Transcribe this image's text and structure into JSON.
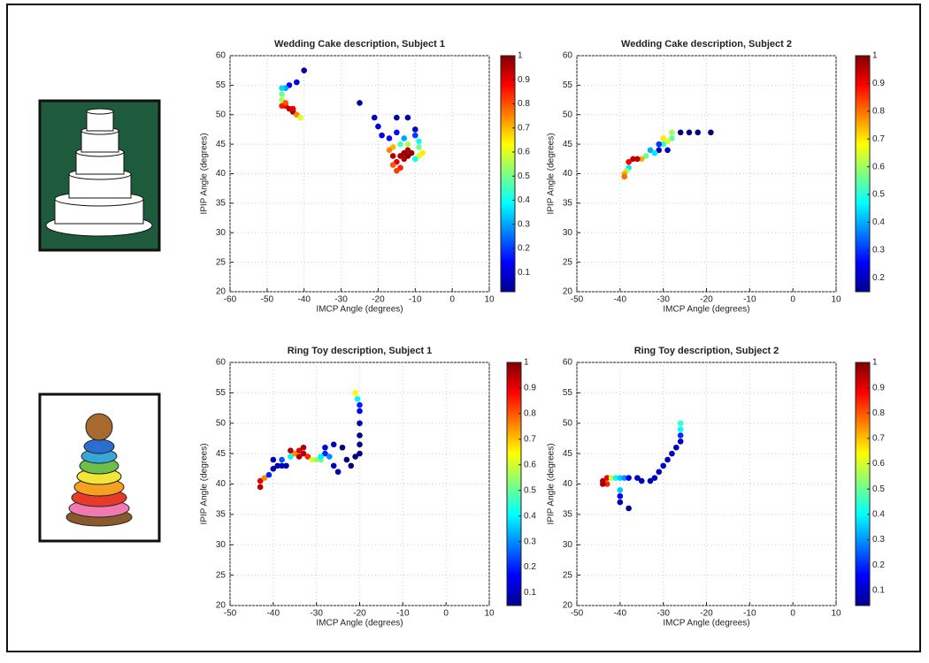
{
  "chart_data": [
    {
      "type": "scatter",
      "title": "Wedding Cake description, Subject 1",
      "x_label": "IMCP Angle (degrees)",
      "y_label": "IPIP Angle (degrees)",
      "xlim": [
        -60,
        10
      ],
      "xticks": [
        -60,
        -50,
        -40,
        -30,
        -20,
        -10,
        0,
        10
      ],
      "ylim": [
        20,
        60
      ],
      "yticks": [
        20,
        25,
        30,
        35,
        40,
        45,
        50,
        55,
        60
      ],
      "grid": true,
      "clim": [
        0.02,
        1
      ],
      "cticks": [
        0.1,
        0.2,
        0.3,
        0.4,
        0.5,
        0.6,
        0.7,
        0.8,
        0.9,
        1
      ],
      "colormap": "jet",
      "x": [
        -40,
        -42,
        -44,
        -45,
        -46,
        -46,
        -46,
        -46,
        -45,
        -44,
        -43,
        -43,
        -42,
        -41,
        -45,
        -25,
        -21,
        -20,
        -19,
        -17,
        -15,
        -12,
        -15,
        -13,
        -14,
        -12,
        -10,
        -10,
        -9,
        -9,
        -9,
        -10,
        -8,
        -12,
        -13,
        -14,
        -15,
        -14,
        -16,
        -15,
        -16,
        -17,
        -11,
        -12,
        -13,
        -16
      ],
      "values": [
        57.5,
        55.5,
        55,
        54.5,
        54.5,
        53.5,
        52.5,
        51.5,
        51.5,
        51,
        50.5,
        51,
        50,
        49.5,
        52,
        52,
        49.5,
        48,
        46.5,
        46,
        49.5,
        49.5,
        47,
        46,
        45,
        45,
        47.5,
        46.5,
        45.5,
        44.5,
        43,
        42.5,
        43.5,
        44,
        43.5,
        43,
        42,
        41,
        41.5,
        40.5,
        44.5,
        44,
        43.5,
        43,
        42.5,
        43
      ],
      "c": [
        0.05,
        0.1,
        0.15,
        0.3,
        0.35,
        0.5,
        0.55,
        0.85,
        0.9,
        0.95,
        0.98,
        0.9,
        0.75,
        0.6,
        0.8,
        0.05,
        0.08,
        0.1,
        0.12,
        0.15,
        0.05,
        0.05,
        0.15,
        0.3,
        0.45,
        0.55,
        0.1,
        0.2,
        0.4,
        0.5,
        0.6,
        0.4,
        0.65,
        0.95,
        0.98,
        0.97,
        0.9,
        0.85,
        0.8,
        0.82,
        0.7,
        0.75,
        0.97,
        0.99,
        0.95,
        0.95
      ]
    },
    {
      "type": "scatter",
      "title": "Wedding Cake description, Subject 2",
      "x_label": "IMCP Angle (degrees)",
      "y_label": "IPIP Angle (degrees)",
      "xlim": [
        -50,
        10
      ],
      "xticks": [
        -50,
        -40,
        -30,
        -20,
        -10,
        0,
        10
      ],
      "ylim": [
        20,
        60
      ],
      "yticks": [
        20,
        25,
        30,
        35,
        40,
        45,
        50,
        55,
        60
      ],
      "grid": true,
      "clim": [
        0.15,
        1
      ],
      "cticks": [
        0.2,
        0.3,
        0.4,
        0.5,
        0.6,
        0.7,
        0.8,
        0.9,
        1
      ],
      "colormap": "jet",
      "x": [
        -19,
        -22,
        -24,
        -26,
        -28,
        -28,
        -29,
        -30,
        -31,
        -31,
        -29,
        -33,
        -34,
        -35,
        -36,
        -37,
        -38,
        -38,
        -38.5,
        -39,
        -39,
        -32,
        -30
      ],
      "values": [
        47,
        47,
        47,
        47,
        47,
        46,
        45.5,
        45,
        45,
        44,
        44,
        44,
        43,
        42.5,
        42.5,
        42.5,
        42,
        41,
        40.5,
        40,
        39.5,
        43.5,
        46
      ],
      "c": [
        0.15,
        0.15,
        0.15,
        0.15,
        0.6,
        0.55,
        0.65,
        0.5,
        0.3,
        0.2,
        0.2,
        0.4,
        0.55,
        0.75,
        0.95,
        0.95,
        0.9,
        0.45,
        0.6,
        0.75,
        0.8,
        0.45,
        0.7
      ]
    },
    {
      "type": "scatter",
      "title": "Ring Toy description, Subject 1",
      "x_label": "IMCP Angle (degrees)",
      "y_label": "IPIP Angle (degrees)",
      "xlim": [
        -50,
        10
      ],
      "xticks": [
        -50,
        -40,
        -30,
        -20,
        -10,
        0,
        10
      ],
      "ylim": [
        20,
        60
      ],
      "yticks": [
        20,
        25,
        30,
        35,
        40,
        45,
        50,
        55,
        60
      ],
      "grid": true,
      "clim": [
        0.05,
        1
      ],
      "cticks": [
        0.1,
        0.2,
        0.3,
        0.4,
        0.5,
        0.6,
        0.7,
        0.8,
        0.9,
        1
      ],
      "colormap": "jet",
      "x": [
        -43,
        -43,
        -42,
        -41,
        -40,
        -39,
        -40,
        -38,
        -37,
        -38,
        -36,
        -35,
        -34,
        -33,
        -34,
        -33,
        -32,
        -31,
        -30,
        -29,
        -28,
        -28,
        -26,
        -26,
        -25,
        -24,
        -23,
        -22,
        -21,
        -20,
        -20,
        -20,
        -20,
        -20,
        -20,
        -20.5,
        -21,
        -36,
        -29,
        -27
      ],
      "values": [
        39.5,
        40.5,
        41,
        41.5,
        42.5,
        43,
        44,
        43,
        43,
        44,
        44.5,
        45,
        45.5,
        46,
        44.5,
        45,
        44.5,
        44,
        44,
        44,
        45,
        46,
        46.5,
        43,
        42,
        46,
        44,
        43,
        44.5,
        45,
        46.5,
        48,
        50,
        52,
        53,
        54,
        55,
        45.5,
        44.5,
        44.5
      ],
      "c": [
        0.95,
        0.9,
        0.75,
        0.2,
        0.1,
        0.1,
        0.1,
        0.1,
        0.1,
        0.25,
        0.4,
        0.75,
        0.9,
        0.95,
        0.95,
        0.95,
        0.85,
        0.6,
        0.55,
        0.5,
        0.2,
        0.15,
        0.1,
        0.1,
        0.1,
        0.05,
        0.05,
        0.05,
        0.05,
        0.05,
        0.05,
        0.05,
        0.1,
        0.15,
        0.2,
        0.4,
        0.65,
        0.95,
        0.4,
        0.3
      ]
    },
    {
      "type": "scatter",
      "title": "Ring Toy description, Subject 2",
      "x_label": "IMCP Angle (degrees)",
      "y_label": "IPIP Angle (degrees)",
      "xlim": [
        -50,
        10
      ],
      "xticks": [
        -50,
        -40,
        -30,
        -20,
        -10,
        0,
        10
      ],
      "ylim": [
        20,
        60
      ],
      "yticks": [
        20,
        25,
        30,
        35,
        40,
        45,
        50,
        55,
        60
      ],
      "grid": true,
      "clim": [
        0.04,
        1
      ],
      "cticks": [
        0.1,
        0.2,
        0.3,
        0.4,
        0.5,
        0.6,
        0.7,
        0.8,
        0.9,
        1
      ],
      "colormap": "jet",
      "x": [
        -44,
        -43,
        -43,
        -42,
        -41,
        -40,
        -39,
        -38,
        -36,
        -35,
        -33,
        -32,
        -31,
        -30,
        -29,
        -28,
        -27,
        -26,
        -26,
        -26,
        -26,
        -40,
        -40,
        -40,
        -38,
        -44
      ],
      "values": [
        40.5,
        40,
        41,
        41,
        41,
        41,
        41,
        41,
        41,
        40.5,
        40.5,
        41,
        42,
        43,
        44,
        45,
        46,
        47,
        48,
        49,
        50,
        39,
        38,
        37,
        36,
        40
      ],
      "c": [
        0.95,
        0.85,
        0.9,
        0.6,
        0.4,
        0.35,
        0.3,
        0.15,
        0.1,
        0.1,
        0.1,
        0.1,
        0.1,
        0.1,
        0.1,
        0.1,
        0.1,
        0.1,
        0.2,
        0.4,
        0.45,
        0.35,
        0.15,
        0.1,
        0.05,
        0.97
      ]
    }
  ]
}
